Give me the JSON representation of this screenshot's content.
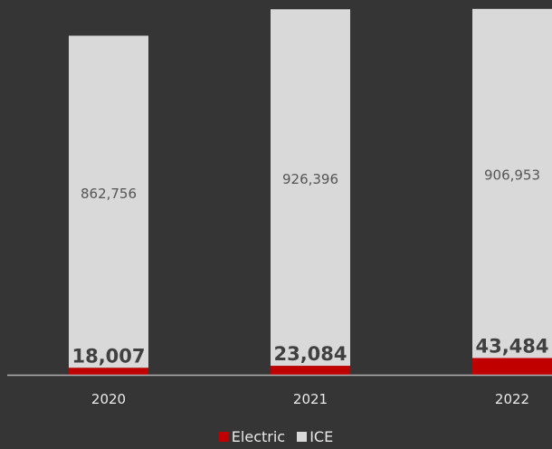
{
  "chart_data": {
    "type": "bar",
    "stacked": true,
    "categories": [
      "2020",
      "2021",
      "2022"
    ],
    "series": [
      {
        "name": "Electric",
        "values": [
          18007,
          23084,
          43484
        ],
        "labels": [
          "18,007",
          "23,084",
          "43,484"
        ],
        "color": "#c00000"
      },
      {
        "name": "ICE",
        "values": [
          862756,
          926396,
          906953
        ],
        "labels": [
          "862,756",
          "926,396",
          "906,953"
        ],
        "color": "#d9d9d9"
      }
    ],
    "title": "",
    "xlabel": "",
    "ylabel": "",
    "ylim": [
      0,
      950000
    ],
    "grid": false,
    "legend": "bottom",
    "background": "#353535"
  }
}
